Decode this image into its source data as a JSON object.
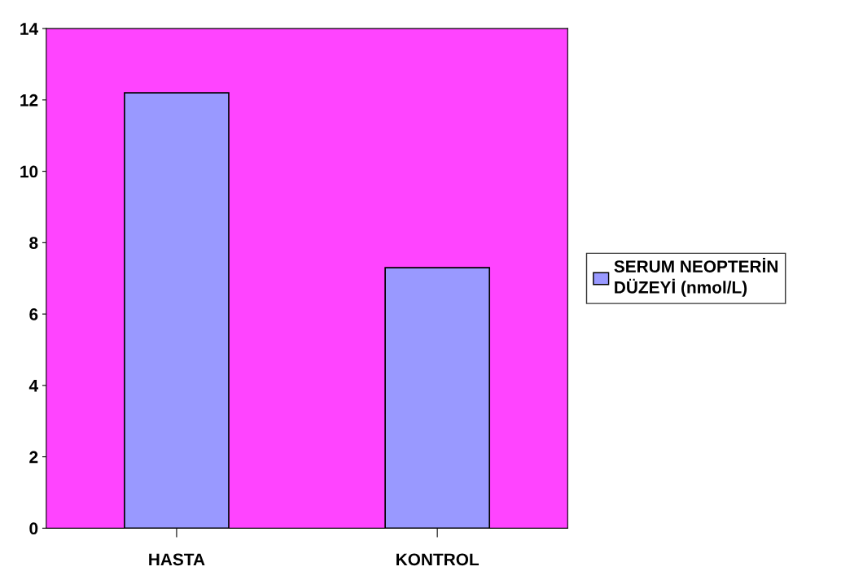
{
  "chart_data": {
    "type": "bar",
    "categories": [
      "HASTA",
      "KONTROL"
    ],
    "series": [
      {
        "name": "SERUM NEOPTERİN DÜZEYİ (nmol/L)",
        "color": "#9999ff",
        "values": [
          12.2,
          7.3
        ]
      }
    ],
    "ylim": [
      0,
      14
    ],
    "yticks": [
      0,
      2,
      4,
      6,
      8,
      10,
      12,
      14
    ],
    "grid": false,
    "legend": "right"
  }
}
